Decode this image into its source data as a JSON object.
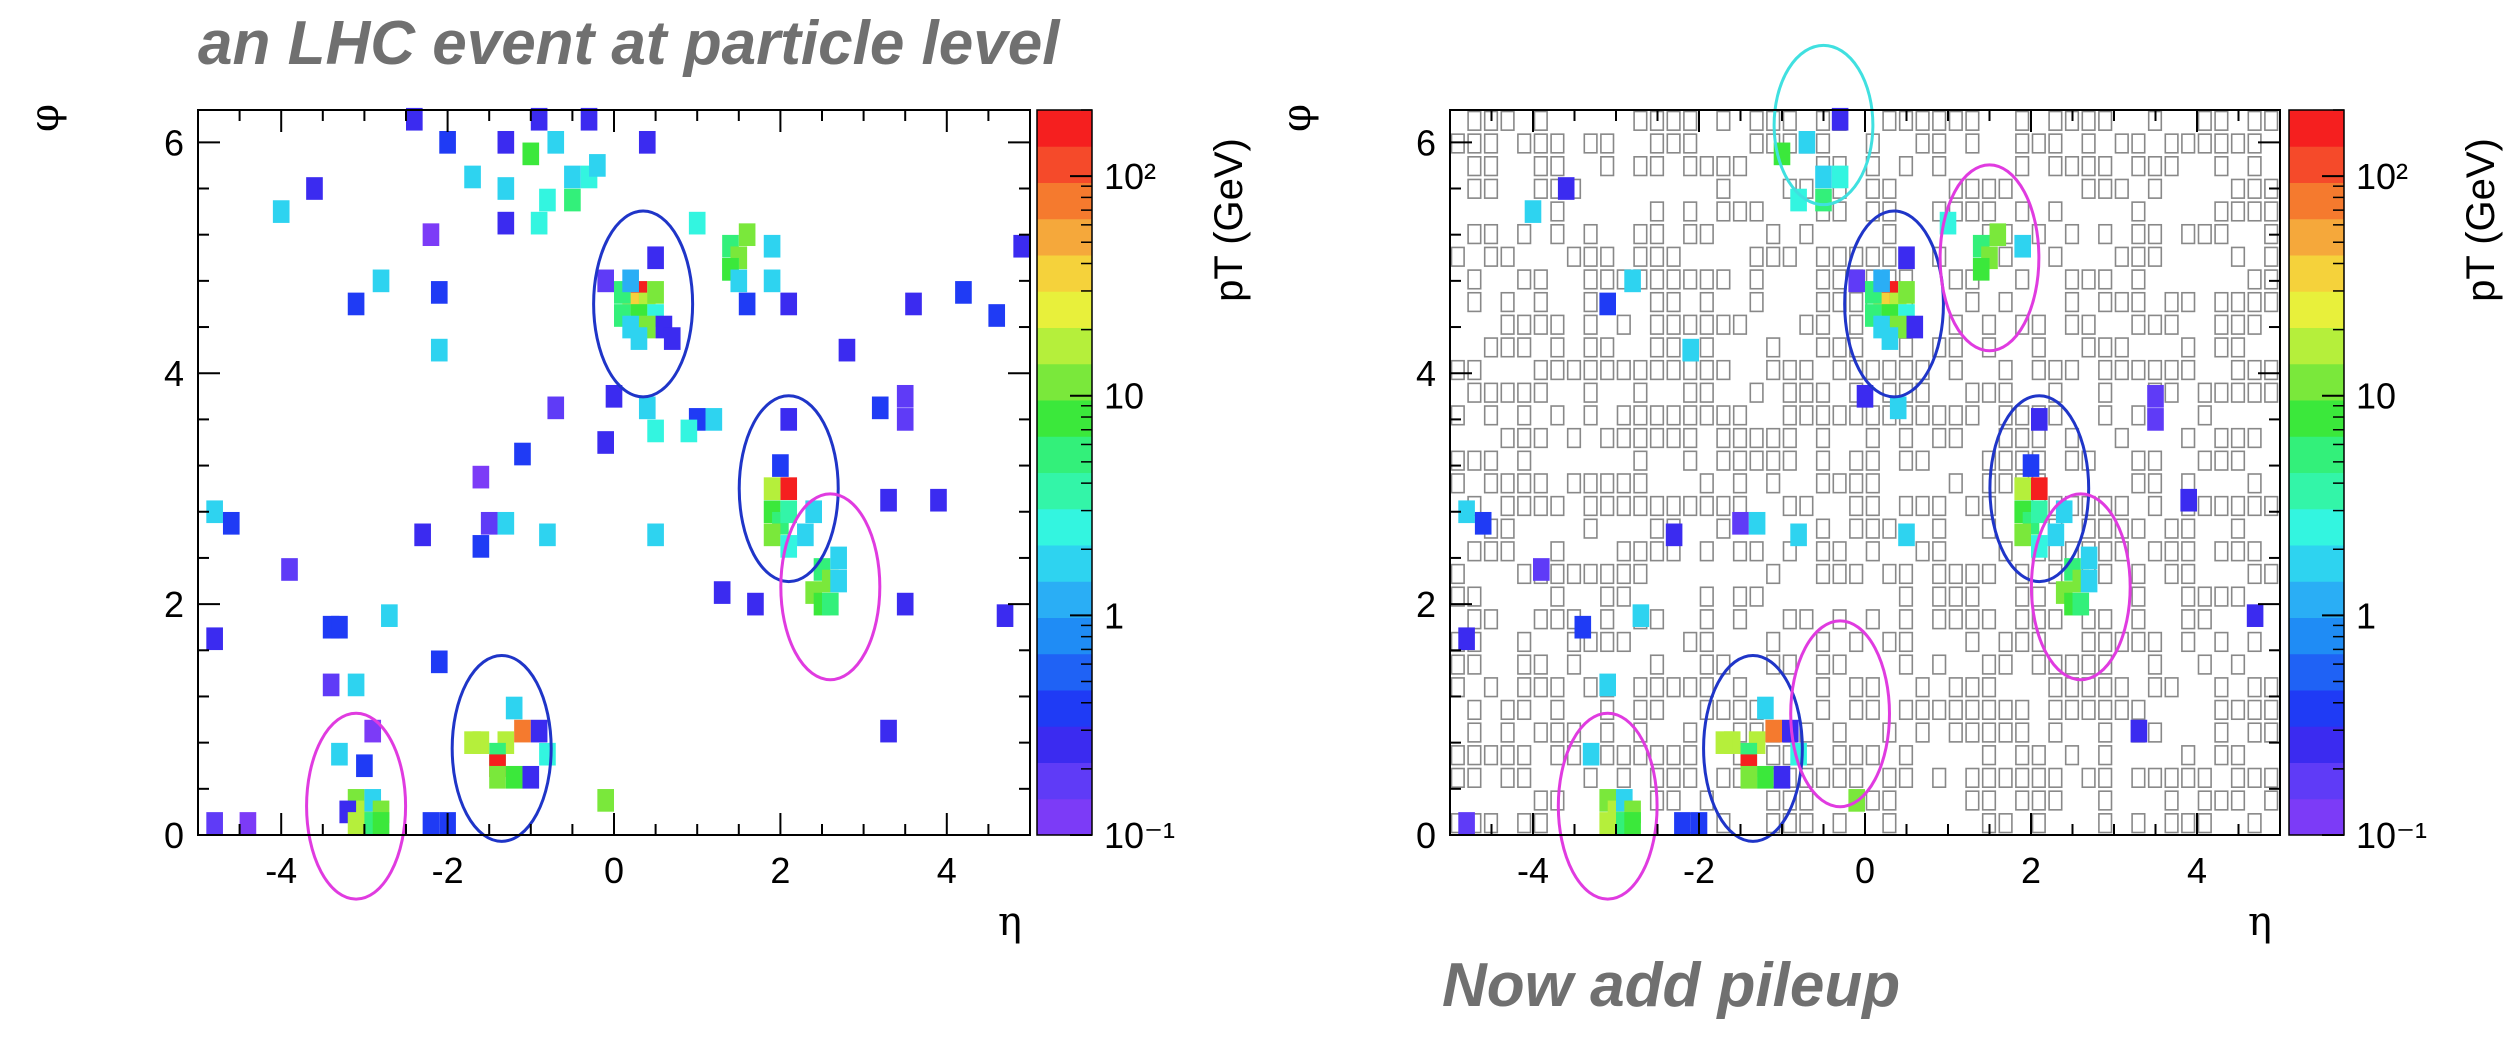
{
  "titles": {
    "main": "an LHC event at particle level",
    "sub": "Now add pileup"
  },
  "colors": {
    "title": "#707070",
    "palette": [
      "#7c3bf7",
      "#5f3bf7",
      "#3b2bf0",
      "#1f3bf5",
      "#1f62f5",
      "#1f8cf5",
      "#2aaef5",
      "#2ed3f0",
      "#33f5e0",
      "#33f5a8",
      "#33f07a",
      "#3be83b",
      "#7ae83b",
      "#b5ef3b",
      "#e8f03b",
      "#f5d23b",
      "#f5a83b",
      "#f57a2e",
      "#f54a2a",
      "#f51f1f"
    ],
    "jet_hard": "#1f35c8",
    "jet_pileup_magenta": "#e03be0",
    "jet_pileup_cyan": "#40e0e0",
    "pileup_cell_border": "#888888"
  },
  "chart_data": [
    {
      "type": "heatmap",
      "title": "",
      "xlabel": "η",
      "ylabel": "φ",
      "zlabel": "pT (GeV)",
      "xlim": [
        -5,
        5
      ],
      "ylim": [
        0,
        6.28
      ],
      "zlog": true,
      "zlim": [
        0.1,
        200
      ],
      "xticks": [
        "-4",
        "-2",
        "0",
        "2",
        "4"
      ],
      "yticks": [
        "0",
        "2",
        "4",
        "6"
      ],
      "zticks": [
        "10⁻¹",
        "1",
        "10",
        "10²"
      ],
      "cells": [
        [
          0.3,
          4.7,
          150
        ],
        [
          0.2,
          4.6,
          30
        ],
        [
          0.4,
          4.6,
          20
        ],
        [
          0.3,
          4.5,
          8
        ],
        [
          0.1,
          4.5,
          5
        ],
        [
          0.5,
          4.5,
          3
        ],
        [
          0.2,
          4.4,
          2
        ],
        [
          0.4,
          4.4,
          10
        ],
        [
          0.1,
          4.7,
          6
        ],
        [
          0.5,
          4.7,
          12
        ],
        [
          0.2,
          4.8,
          1
        ],
        [
          0.6,
          4.4,
          0.3
        ],
        [
          0.3,
          4.3,
          1.5
        ],
        [
          0.5,
          5.0,
          0.25
        ],
        [
          -0.1,
          4.8,
          0.15
        ],
        [
          0.7,
          4.3,
          0.3
        ],
        [
          0.0,
          3.8,
          0.3
        ],
        [
          0.4,
          3.7,
          2
        ],
        [
          2.0,
          3.2,
          0.4
        ],
        [
          2.1,
          3.0,
          150
        ],
        [
          1.9,
          3.0,
          20
        ],
        [
          1.9,
          2.8,
          8
        ],
        [
          2.0,
          2.7,
          5
        ],
        [
          2.1,
          2.8,
          4
        ],
        [
          1.9,
          2.6,
          12
        ],
        [
          2.3,
          2.6,
          2
        ],
        [
          2.1,
          2.5,
          3
        ],
        [
          2.5,
          2.3,
          6
        ],
        [
          2.6,
          2.2,
          10
        ],
        [
          2.4,
          2.1,
          12
        ],
        [
          2.5,
          2.0,
          8
        ],
        [
          2.6,
          2.0,
          6
        ],
        [
          2.7,
          2.2,
          2
        ],
        [
          2.7,
          2.4,
          2
        ],
        [
          2.4,
          2.8,
          1.5
        ],
        [
          2.1,
          3.6,
          0.3
        ],
        [
          -1.3,
          0.8,
          20
        ],
        [
          -1.1,
          0.9,
          80
        ],
        [
          -1.2,
          1.1,
          2
        ],
        [
          -1.4,
          0.7,
          6
        ],
        [
          -1.6,
          0.8,
          15
        ],
        [
          -1.7,
          0.8,
          20
        ],
        [
          -1.4,
          0.6,
          150
        ],
        [
          -1.4,
          0.5,
          12
        ],
        [
          -1.2,
          0.5,
          8
        ],
        [
          -0.8,
          0.7,
          3
        ],
        [
          -1.0,
          0.5,
          0.3
        ],
        [
          -0.9,
          0.9,
          0.3
        ],
        [
          -0.1,
          0.3,
          10
        ],
        [
          -3.1,
          0.3,
          10
        ],
        [
          -3.0,
          0.2,
          20
        ],
        [
          -2.9,
          0.3,
          2
        ],
        [
          -2.8,
          0.2,
          12
        ],
        [
          -3.2,
          0.2,
          0.3
        ],
        [
          -3.1,
          0.1,
          15
        ],
        [
          -2.9,
          0.1,
          6
        ],
        [
          -2.8,
          0.1,
          8
        ],
        [
          -3.3,
          0.7,
          2
        ],
        [
          -3.0,
          0.6,
          0.4
        ],
        [
          -2.2,
          0.1,
          0.4
        ],
        [
          -2.0,
          0.1,
          0.35
        ],
        [
          -4.8,
          0.1,
          0.2
        ],
        [
          -4.4,
          0.1,
          0.12
        ],
        [
          -2.9,
          0.9,
          0.12
        ],
        [
          -2.4,
          6.2,
          0.3
        ],
        [
          -2.0,
          6.0,
          0.4
        ],
        [
          -1.7,
          5.7,
          2
        ],
        [
          -1.3,
          5.6,
          2
        ],
        [
          -1.3,
          6.0,
          0.3
        ],
        [
          -1.3,
          5.3,
          0.3
        ],
        [
          -1.0,
          5.9,
          8
        ],
        [
          -0.9,
          6.2,
          0.3
        ],
        [
          -0.7,
          6.0,
          1.5
        ],
        [
          -0.8,
          5.5,
          2.5
        ],
        [
          -0.5,
          5.7,
          2
        ],
        [
          -0.5,
          5.5,
          5
        ],
        [
          -0.3,
          5.7,
          3
        ],
        [
          -0.2,
          5.8,
          2
        ],
        [
          -0.3,
          6.2,
          0.3
        ],
        [
          0.4,
          6.0,
          0.3
        ],
        [
          -0.9,
          5.3,
          3
        ],
        [
          -2.2,
          5.2,
          0.12
        ],
        [
          -2.1,
          4.7,
          0.4
        ],
        [
          -2.8,
          4.8,
          1.5
        ],
        [
          -3.6,
          5.6,
          0.3
        ],
        [
          -3.1,
          4.6,
          0.35
        ],
        [
          -4.0,
          5.4,
          1.5
        ],
        [
          -2.1,
          4.2,
          1.5
        ],
        [
          1.0,
          5.3,
          3
        ],
        [
          1.4,
          5.1,
          5
        ],
        [
          1.6,
          5.2,
          10
        ],
        [
          1.5,
          5.0,
          12
        ],
        [
          1.4,
          4.9,
          4
        ],
        [
          1.9,
          5.1,
          1.5
        ],
        [
          1.4,
          4.9,
          8
        ],
        [
          1.5,
          4.8,
          2
        ],
        [
          1.9,
          4.8,
          1.5
        ],
        [
          1.6,
          4.6,
          0.4
        ],
        [
          2.1,
          4.6,
          0.3
        ],
        [
          2.8,
          4.2,
          0.3
        ],
        [
          3.6,
          4.6,
          0.3
        ],
        [
          4.2,
          4.7,
          0.35
        ],
        [
          4.6,
          4.5,
          0.35
        ],
        [
          4.9,
          5.1,
          0.3
        ],
        [
          3.5,
          3.8,
          0.15
        ],
        [
          3.2,
          3.7,
          0.35
        ],
        [
          3.5,
          3.6,
          0.15
        ],
        [
          1.2,
          3.6,
          1.5
        ],
        [
          1.0,
          3.6,
          0.4
        ],
        [
          0.9,
          3.5,
          2.5
        ],
        [
          0.5,
          3.5,
          2.5
        ],
        [
          -0.7,
          3.7,
          0.15
        ],
        [
          -1.1,
          3.3,
          0.35
        ],
        [
          -0.1,
          3.4,
          0.3
        ],
        [
          -1.6,
          3.1,
          0.12
        ],
        [
          -1.5,
          2.7,
          0.15
        ],
        [
          -1.3,
          2.7,
          1.5
        ],
        [
          -2.3,
          2.6,
          0.3
        ],
        [
          -1.6,
          2.5,
          0.35
        ],
        [
          -0.8,
          2.6,
          1.5
        ],
        [
          0.5,
          2.6,
          1.5
        ],
        [
          3.3,
          2.9,
          0.3
        ],
        [
          3.9,
          2.9,
          0.3
        ],
        [
          -4.8,
          2.8,
          1.5
        ],
        [
          -4.6,
          2.7,
          0.35
        ],
        [
          -3.9,
          2.3,
          0.15
        ],
        [
          -3.4,
          1.8,
          0.35
        ],
        [
          -3.3,
          1.8,
          0.4
        ],
        [
          -2.7,
          1.9,
          1.5
        ],
        [
          -4.8,
          1.7,
          0.3
        ],
        [
          -3.4,
          1.3,
          0.15
        ],
        [
          -3.1,
          1.3,
          2
        ],
        [
          -2.1,
          1.5,
          0.35
        ],
        [
          1.3,
          2.1,
          0.3
        ],
        [
          1.7,
          2.0,
          0.3
        ],
        [
          3.5,
          2.0,
          0.3
        ],
        [
          4.7,
          1.9,
          0.3
        ],
        [
          3.3,
          0.9,
          0.3
        ]
      ],
      "jets": [
        {
          "kind": "hard",
          "eta": 0.35,
          "phi": 4.6,
          "r_eta": 0.7,
          "r_phi": 0.7
        },
        {
          "kind": "hard",
          "eta": 2.1,
          "phi": 3.0,
          "r_eta": 0.7,
          "r_phi": 0.7
        },
        {
          "kind": "hard",
          "eta": -1.35,
          "phi": 0.75,
          "r_eta": 0.7,
          "r_phi": 0.7
        },
        {
          "kind": "pileup",
          "eta": 2.6,
          "phi": 2.15,
          "r_eta": 0.7,
          "r_phi": 0.7
        },
        {
          "kind": "pileup",
          "eta": -3.1,
          "phi": 0.25,
          "r_eta": 0.7,
          "r_phi": 0.7
        }
      ]
    },
    {
      "type": "heatmap",
      "title": "",
      "xlabel": "η",
      "ylabel": "φ",
      "zlabel": "pT (GeV)",
      "xlim": [
        -5,
        5
      ],
      "ylim": [
        0,
        6.28
      ],
      "zlog": true,
      "zlim": [
        0.1,
        200
      ],
      "xticks": [
        "-4",
        "-2",
        "0",
        "2",
        "4"
      ],
      "yticks": [
        "0",
        "2",
        "4",
        "6"
      ],
      "zticks": [
        "10⁻¹",
        "1",
        "10",
        "10²"
      ],
      "pileup_background": true,
      "cells": [
        [
          0.3,
          4.7,
          150
        ],
        [
          0.2,
          4.6,
          30
        ],
        [
          0.4,
          4.6,
          20
        ],
        [
          0.3,
          4.5,
          8
        ],
        [
          0.1,
          4.5,
          5
        ],
        [
          0.5,
          4.5,
          3
        ],
        [
          0.2,
          4.4,
          2
        ],
        [
          0.4,
          4.4,
          10
        ],
        [
          0.1,
          4.7,
          6
        ],
        [
          0.5,
          4.7,
          12
        ],
        [
          0.2,
          4.8,
          1
        ],
        [
          0.6,
          4.4,
          0.3
        ],
        [
          0.3,
          4.3,
          1.5
        ],
        [
          0.5,
          5.0,
          0.25
        ],
        [
          -0.1,
          4.8,
          0.15
        ],
        [
          0.0,
          3.8,
          0.3
        ],
        [
          0.4,
          3.7,
          2
        ],
        [
          2.0,
          3.2,
          0.4
        ],
        [
          2.1,
          3.0,
          150
        ],
        [
          1.9,
          3.0,
          20
        ],
        [
          1.9,
          2.8,
          8
        ],
        [
          2.0,
          2.7,
          5
        ],
        [
          2.1,
          2.8,
          4
        ],
        [
          1.9,
          2.6,
          12
        ],
        [
          2.3,
          2.6,
          2
        ],
        [
          2.1,
          2.5,
          3
        ],
        [
          2.5,
          2.3,
          6
        ],
        [
          2.6,
          2.2,
          10
        ],
        [
          2.4,
          2.1,
          12
        ],
        [
          2.5,
          2.0,
          8
        ],
        [
          2.6,
          2.0,
          6
        ],
        [
          2.7,
          2.2,
          2
        ],
        [
          2.7,
          2.4,
          2
        ],
        [
          2.4,
          2.8,
          1.5
        ],
        [
          2.1,
          3.6,
          0.3
        ],
        [
          -1.3,
          0.8,
          20
        ],
        [
          -1.1,
          0.9,
          80
        ],
        [
          -1.2,
          1.1,
          2
        ],
        [
          -1.4,
          0.7,
          6
        ],
        [
          -1.6,
          0.8,
          15
        ],
        [
          -1.7,
          0.8,
          20
        ],
        [
          -1.4,
          0.6,
          150
        ],
        [
          -1.4,
          0.5,
          12
        ],
        [
          -1.2,
          0.5,
          8
        ],
        [
          -0.8,
          0.7,
          3
        ],
        [
          -1.0,
          0.5,
          0.3
        ],
        [
          -0.9,
          0.9,
          0.3
        ],
        [
          -0.1,
          0.3,
          10
        ],
        [
          -3.1,
          0.3,
          10
        ],
        [
          -3.0,
          0.2,
          20
        ],
        [
          -2.9,
          0.3,
          2
        ],
        [
          -2.8,
          0.2,
          12
        ],
        [
          -3.1,
          0.1,
          15
        ],
        [
          -2.9,
          0.1,
          6
        ],
        [
          -2.8,
          0.1,
          8
        ],
        [
          -3.3,
          0.7,
          2
        ],
        [
          -2.2,
          0.1,
          0.4
        ],
        [
          -2.0,
          0.1,
          0.35
        ],
        [
          -4.8,
          0.1,
          0.2
        ],
        [
          -0.7,
          6.0,
          1.5
        ],
        [
          -0.8,
          5.5,
          2.5
        ],
        [
          -0.5,
          5.7,
          2
        ],
        [
          -0.5,
          5.5,
          5
        ],
        [
          -0.3,
          5.7,
          3
        ],
        [
          -1.0,
          5.9,
          8
        ],
        [
          -0.3,
          6.2,
          0.3
        ],
        [
          1.4,
          5.1,
          5
        ],
        [
          1.6,
          5.2,
          10
        ],
        [
          1.5,
          5.0,
          12
        ],
        [
          1.0,
          5.3,
          3
        ],
        [
          1.4,
          4.9,
          8
        ],
        [
          1.9,
          5.1,
          1.5
        ],
        [
          -3.6,
          5.6,
          0.3
        ],
        [
          -4.0,
          5.4,
          1.5
        ],
        [
          -2.8,
          4.8,
          1.5
        ],
        [
          -3.1,
          4.6,
          0.35
        ],
        [
          -2.1,
          4.2,
          1.5
        ],
        [
          3.5,
          3.8,
          0.15
        ],
        [
          3.5,
          3.6,
          0.15
        ],
        [
          -4.8,
          2.8,
          1.5
        ],
        [
          -4.6,
          2.7,
          0.35
        ],
        [
          -3.9,
          2.3,
          0.15
        ],
        [
          -3.4,
          1.8,
          0.35
        ],
        [
          -2.7,
          1.9,
          1.5
        ],
        [
          -4.8,
          1.7,
          0.3
        ],
        [
          -3.1,
          1.3,
          2
        ],
        [
          4.7,
          1.9,
          0.3
        ],
        [
          3.3,
          0.9,
          0.3
        ],
        [
          3.9,
          2.9,
          0.3
        ],
        [
          -1.5,
          2.7,
          0.15
        ],
        [
          -1.3,
          2.7,
          1.5
        ],
        [
          -0.8,
          2.6,
          1.5
        ],
        [
          0.5,
          2.6,
          1.5
        ],
        [
          -2.3,
          2.6,
          0.3
        ]
      ],
      "jets": [
        {
          "kind": "hard",
          "eta": 0.35,
          "phi": 4.6,
          "r_eta": 0.7,
          "r_phi": 0.7
        },
        {
          "kind": "hard",
          "eta": 2.1,
          "phi": 3.0,
          "r_eta": 0.7,
          "r_phi": 0.7
        },
        {
          "kind": "hard",
          "eta": -1.35,
          "phi": 0.75,
          "r_eta": 0.7,
          "r_phi": 0.7
        },
        {
          "kind": "pileup",
          "eta": 2.6,
          "phi": 2.15,
          "r_eta": 0.7,
          "r_phi": 0.7
        },
        {
          "kind": "pileup",
          "eta": -3.1,
          "phi": 0.25,
          "r_eta": 0.7,
          "r_phi": 0.7
        },
        {
          "kind": "pileup",
          "eta": 1.5,
          "phi": 5.0,
          "r_eta": 0.7,
          "r_phi": 0.7
        },
        {
          "kind": "pileup",
          "eta": -0.3,
          "phi": 1.05,
          "r_eta": 0.7,
          "r_phi": 0.7
        },
        {
          "kind": "pileup-cyan",
          "eta": -0.5,
          "phi": 6.15,
          "r_eta": 0.7,
          "r_phi": 0.6
        }
      ]
    }
  ]
}
